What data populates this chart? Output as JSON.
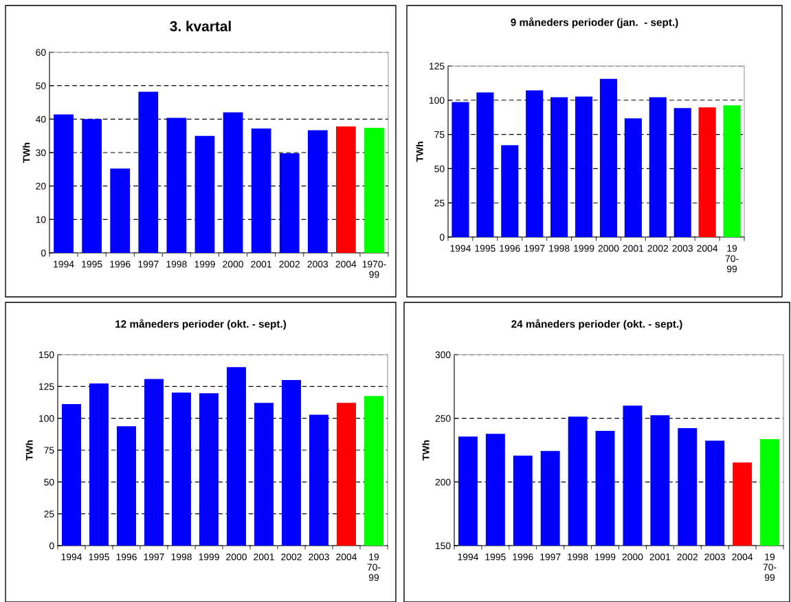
{
  "chart_data": [
    {
      "type": "bar",
      "title": "3. kvartal",
      "ylabel": "TWh",
      "categories": [
        "1994",
        "1995",
        "1996",
        "1997",
        "1998",
        "1999",
        "2000",
        "2001",
        "2002",
        "2003",
        "2004",
        "1970-\n99"
      ],
      "values": [
        41.4,
        40,
        25.2,
        48.2,
        40.4,
        35,
        42,
        37.2,
        29.8,
        36.7,
        37.8,
        37.4
      ],
      "colors": [
        "#0000ff",
        "#0000ff",
        "#0000ff",
        "#0000ff",
        "#0000ff",
        "#0000ff",
        "#0000ff",
        "#0000ff",
        "#0000ff",
        "#0000ff",
        "#ff0000",
        "#00ff00"
      ],
      "ylim": [
        0,
        60
      ],
      "yticks": [
        0,
        10,
        20,
        30,
        40,
        50,
        60
      ],
      "grid": "y",
      "line_style": "dashed"
    },
    {
      "type": "bar",
      "title": "9 måneders perioder (jan.  - sept.)",
      "ylabel": "TWh",
      "categories": [
        "1994",
        "1995",
        "1996",
        "1997",
        "1998",
        "1999",
        "2000",
        "2001",
        "2002",
        "2003",
        "2004",
        "19\n70-\n99"
      ],
      "values": [
        98.7,
        105.7,
        67.2,
        107.2,
        102.2,
        102.7,
        115.6,
        86.7,
        102.2,
        94.2,
        94.7,
        96.2
      ],
      "colors": [
        "#0000ff",
        "#0000ff",
        "#0000ff",
        "#0000ff",
        "#0000ff",
        "#0000ff",
        "#0000ff",
        "#0000ff",
        "#0000ff",
        "#0000ff",
        "#ff0000",
        "#00ff00"
      ],
      "ylim": [
        0,
        125
      ],
      "yticks": [
        0,
        25,
        50,
        75,
        100,
        125
      ],
      "grid": "y",
      "line_style": "dashed"
    },
    {
      "type": "bar",
      "title": "12 måneders perioder (okt. - sept.)",
      "ylabel": "TWh",
      "categories": [
        "1994",
        "1995",
        "1996",
        "1997",
        "1998",
        "1999",
        "2000",
        "2001",
        "2002",
        "2003",
        "2004",
        "19\n70-\n99"
      ],
      "values": [
        111.1,
        127.3,
        93.8,
        130.9,
        120.2,
        119.6,
        140.2,
        112.1,
        130,
        102.8,
        112.1,
        117.5
      ],
      "colors": [
        "#0000ff",
        "#0000ff",
        "#0000ff",
        "#0000ff",
        "#0000ff",
        "#0000ff",
        "#0000ff",
        "#0000ff",
        "#0000ff",
        "#0000ff",
        "#ff0000",
        "#00ff00"
      ],
      "ylim": [
        0,
        150
      ],
      "yticks": [
        0,
        25,
        50,
        75,
        100,
        125,
        150
      ],
      "grid": "y",
      "line_style": "dashed"
    },
    {
      "type": "bar",
      "title": "24 måneders perioder (okt. - sept.)",
      "ylabel": "TWh",
      "categories": [
        "1994",
        "1995",
        "1996",
        "1997",
        "1998",
        "1999",
        "2000",
        "2001",
        "2002",
        "2003",
        "2004",
        "19\n70-\n99"
      ],
      "values": [
        235.7,
        237.8,
        220.7,
        224.3,
        251.3,
        240.1,
        260,
        252.4,
        242.2,
        232.4,
        215.3,
        233.6
      ],
      "colors": [
        "#0000ff",
        "#0000ff",
        "#0000ff",
        "#0000ff",
        "#0000ff",
        "#0000ff",
        "#0000ff",
        "#0000ff",
        "#0000ff",
        "#0000ff",
        "#ff0000",
        "#00ff00"
      ],
      "ylim": [
        150,
        300
      ],
      "yticks": [
        150,
        200,
        250,
        300
      ],
      "grid": "y",
      "line_style": "dashed"
    }
  ]
}
